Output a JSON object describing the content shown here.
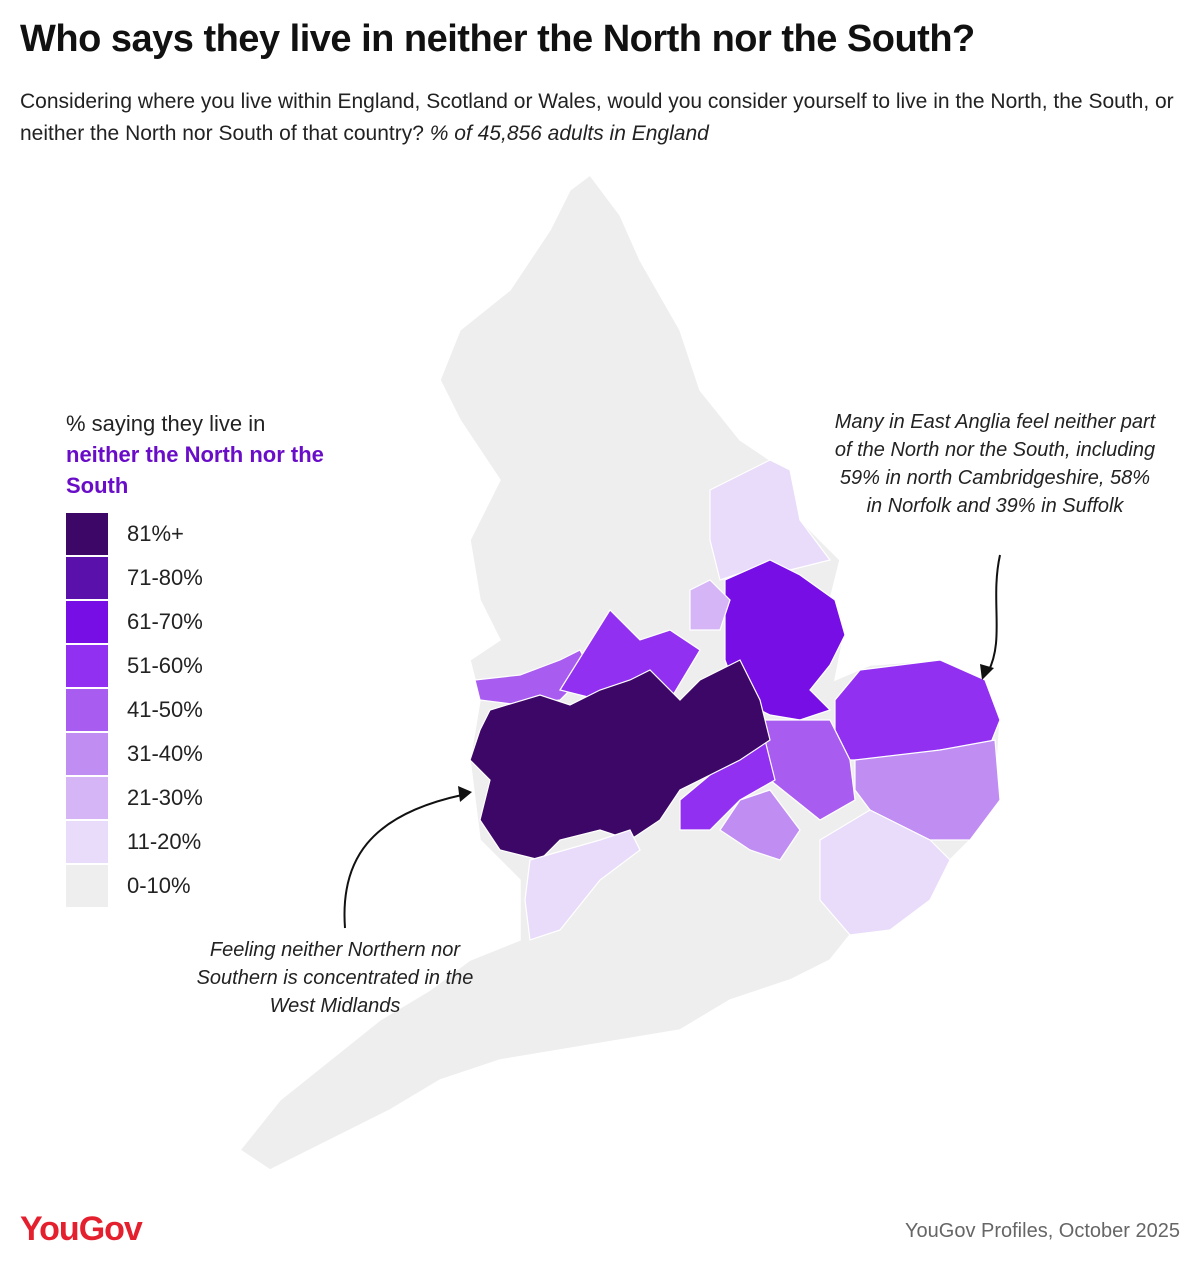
{
  "header": {
    "title": "Who says they live in neither the North nor the South?",
    "subtitle": "Considering where you live within England, Scotland or Wales, would you consider yourself to live in the North, the South, or neither the North nor South of that country?",
    "subtitle_note": "% of 45,856 adults in England"
  },
  "legend": {
    "title": "% saying they live in",
    "title_highlight": "neither the North nor the South",
    "title_highlight_color": "#6a0dc8",
    "items": [
      {
        "label": "81%+",
        "color": "#3d0768"
      },
      {
        "label": "71-80%",
        "color": "#5a10ab"
      },
      {
        "label": "61-70%",
        "color": "#770ee6"
      },
      {
        "label": "51-60%",
        "color": "#9130f0"
      },
      {
        "label": "41-50%",
        "color": "#a95cf0"
      },
      {
        "label": "31-40%",
        "color": "#c08df3"
      },
      {
        "label": "21-30%",
        "color": "#d5b5f6"
      },
      {
        "label": "11-20%",
        "color": "#e9dbfa"
      },
      {
        "label": "0-10%",
        "color": "#eeeeee"
      }
    ]
  },
  "annotations": [
    {
      "text": "Many in East Anglia feel neither part of the North nor the South, including 59% in north Cambridgeshire, 58% in Norfolk and 39% in Suffolk"
    },
    {
      "text": "Feeling neither Northern nor Southern is concentrated in the West Midlands"
    }
  ],
  "footer": {
    "logo": "YouGov",
    "source": "YouGov Profiles, October 2025"
  }
}
